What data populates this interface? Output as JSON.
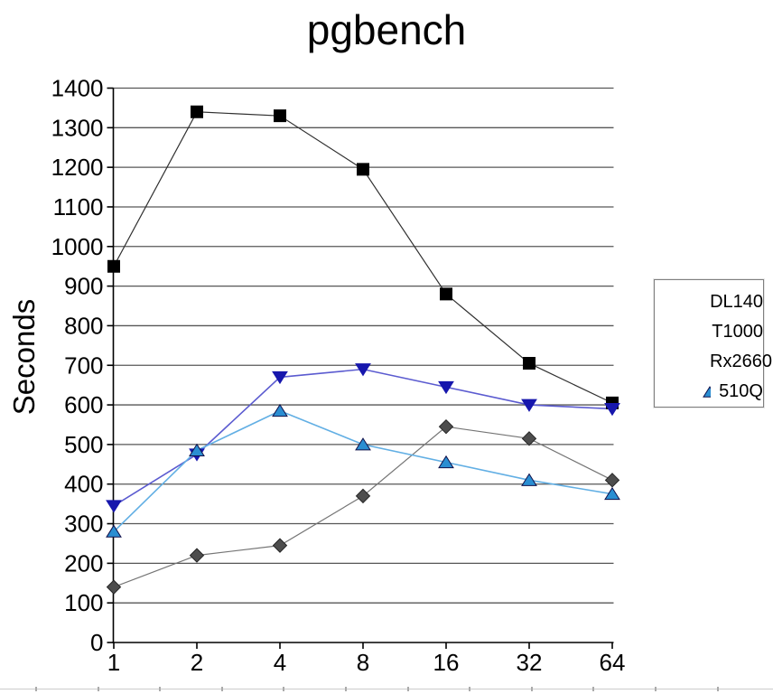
{
  "chart_data": {
    "type": "line",
    "title": "pgbench",
    "ylabel": "Seconds",
    "xlabel": "",
    "x_scale": "log2",
    "categories": [
      "1",
      "2",
      "4",
      "8",
      "16",
      "32",
      "64"
    ],
    "ylim": [
      0,
      1400
    ],
    "y_tick_interval": 100,
    "y_tick_labels": [
      "0",
      "100",
      "200",
      "300",
      "400",
      "500",
      "600",
      "700",
      "800",
      "900",
      "1000",
      "1100",
      "1200",
      "1300",
      "1400"
    ],
    "grid": "horizontal-only",
    "legend_position": "right",
    "series": [
      {
        "name": "DL140",
        "marker": "square",
        "line_color": "#303030",
        "marker_fill": "#000000",
        "marker_edge": "#000000",
        "values": [
          950,
          1340,
          1330,
          1195,
          880,
          705,
          605
        ]
      },
      {
        "name": "T1000",
        "marker": "diamond",
        "line_color": "#757575",
        "marker_fill": "#4d4d4d",
        "marker_edge": "#262626",
        "values": [
          140,
          220,
          245,
          370,
          545,
          515,
          410
        ]
      },
      {
        "name": "Rx2660",
        "marker": "triangle-down",
        "line_color": "#5b5bd0",
        "marker_fill": "#1717ad",
        "marker_edge": "#1717ad",
        "values": [
          345,
          475,
          670,
          690,
          645,
          600,
          590
        ]
      },
      {
        "name": "510Q",
        "marker": "triangle-up",
        "line_color": "#62afe4",
        "marker_fill": "#2a8ed2",
        "marker_edge": "#10104a",
        "values": [
          280,
          485,
          585,
          500,
          455,
          410,
          375
        ]
      }
    ]
  },
  "colors": {
    "grid": "#575757",
    "axis": "#000000",
    "tick_label": "#000000",
    "legend_border": "#7f7f7f",
    "strip_line": "#cccccc",
    "strip_tick": "#ababab"
  }
}
